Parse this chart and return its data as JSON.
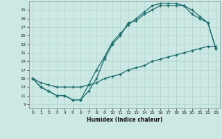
{
  "xlabel": "Humidex (Indice chaleur)",
  "bg_color": "#cce8e4",
  "line_color": "#1a6b6b",
  "grid_color": "#b0d4cc",
  "xlim": [
    -0.5,
    23.5
  ],
  "ylim": [
    8.0,
    33.0
  ],
  "xticks": [
    0,
    1,
    2,
    3,
    4,
    5,
    6,
    7,
    8,
    9,
    10,
    11,
    12,
    13,
    14,
    15,
    16,
    17,
    18,
    19,
    20,
    21,
    22,
    23
  ],
  "yticks": [
    9,
    11,
    13,
    15,
    17,
    19,
    21,
    23,
    25,
    27,
    29,
    31
  ],
  "line1_x": [
    0,
    1,
    2,
    3,
    4,
    5,
    6,
    7,
    8,
    9,
    10,
    11,
    12,
    13,
    14,
    15,
    16,
    17,
    18,
    19,
    20,
    21,
    22,
    23
  ],
  "line1_y": [
    15,
    14,
    13.5,
    13,
    13,
    13,
    13,
    13.5,
    14,
    15,
    15.5,
    16,
    17,
    17.5,
    18,
    19,
    19.5,
    20,
    20.5,
    21,
    21.5,
    22,
    22.5,
    22.5
  ],
  "line2_x": [
    0,
    1,
    2,
    3,
    4,
    5,
    6,
    7,
    8,
    9,
    10,
    11,
    12,
    13,
    14,
    15,
    16,
    17,
    18,
    19,
    20,
    21,
    22,
    23
  ],
  "line2_y": [
    15,
    13,
    12,
    11,
    11,
    10,
    10,
    12,
    15,
    19.5,
    23,
    25,
    28,
    28.5,
    30,
    31,
    32,
    32,
    32,
    32,
    31,
    29.5,
    28,
    22
  ],
  "line3_x": [
    0,
    1,
    2,
    3,
    4,
    5,
    6,
    7,
    8,
    9,
    10,
    11,
    12,
    13,
    14,
    15,
    16,
    17,
    18,
    19,
    20,
    21,
    22,
    23
  ],
  "line3_y": [
    15,
    13,
    12,
    11,
    11,
    10,
    10,
    13.5,
    17,
    20,
    23.5,
    25.5,
    27.5,
    29,
    30.5,
    32,
    32.5,
    32.5,
    32.5,
    32,
    30,
    29,
    28,
    22
  ]
}
